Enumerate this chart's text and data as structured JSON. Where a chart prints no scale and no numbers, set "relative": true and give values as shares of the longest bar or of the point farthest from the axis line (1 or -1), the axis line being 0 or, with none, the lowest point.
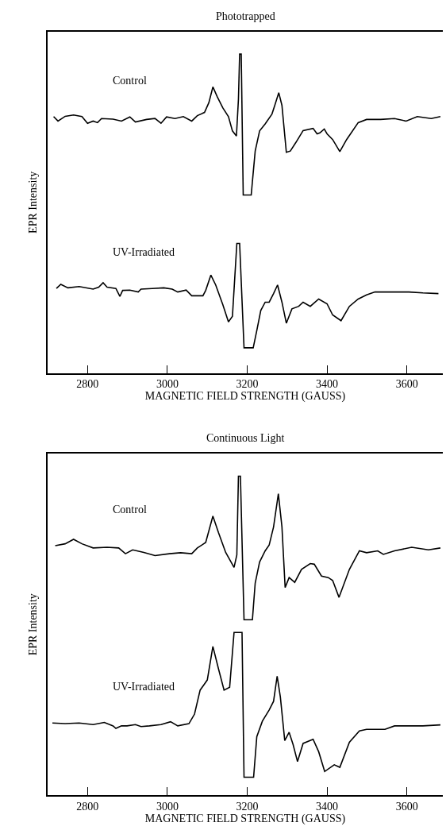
{
  "chart_data": [
    {
      "type": "line",
      "title": "Phototrapped",
      "xlabel": "MAGNETIC FIELD STRENGTH (GAUSS)",
      "ylabel": "EPR Intensity",
      "relative": true,
      "xlim": [
        2700,
        3690
      ],
      "xticks": [
        2800,
        3000,
        3200,
        3400,
        3600
      ],
      "series": [
        {
          "name": "Control",
          "color": "#000000",
          "x": [
            2715,
            2726,
            2744,
            2765,
            2786,
            2800,
            2814,
            2825,
            2835,
            2864,
            2885,
            2906,
            2920,
            2948,
            2969,
            2984,
            2998,
            3019,
            3040,
            3061,
            3075,
            3093,
            3104,
            3114,
            3125,
            3139,
            3153,
            3163,
            3173,
            3178,
            3181,
            3185,
            3190,
            3210,
            3213,
            3220,
            3231,
            3245,
            3262,
            3269,
            3279,
            3287,
            3298,
            3308,
            3322,
            3340,
            3365,
            3375,
            3382,
            3393,
            3400,
            3414,
            3432,
            3449,
            3478,
            3499,
            3534,
            3569,
            3598,
            3626,
            3661,
            3684
          ],
          "values": [
            0.804,
            0.79,
            0.805,
            0.809,
            0.804,
            0.783,
            0.79,
            0.785,
            0.798,
            0.796,
            0.79,
            0.803,
            0.787,
            0.795,
            0.798,
            0.783,
            0.803,
            0.798,
            0.804,
            0.79,
            0.807,
            0.817,
            0.848,
            0.897,
            0.866,
            0.831,
            0.804,
            0.759,
            0.743,
            0.858,
            1,
            1,
            0.558,
            0.558,
            0.6,
            0.696,
            0.759,
            0.781,
            0.812,
            0.839,
            0.879,
            0.839,
            0.692,
            0.696,
            0.723,
            0.76,
            0.767,
            0.75,
            0.753,
            0.765,
            0.75,
            0.732,
            0.694,
            0.732,
            0.785,
            0.795,
            0.795,
            0.798,
            0.79,
            0.804,
            0.798,
            0.804
          ]
        },
        {
          "name": "UV-Irradiated",
          "color": "#000000",
          "x": [
            2722,
            2733,
            2751,
            2779,
            2814,
            2828,
            2839,
            2849,
            2871,
            2881,
            2888,
            2906,
            2927,
            2934,
            2962,
            2991,
            3012,
            3026,
            3047,
            3061,
            3089,
            3096,
            3109,
            3121,
            3139,
            3153,
            3163,
            3174,
            3181,
            3192,
            3215,
            3224,
            3234,
            3245,
            3255,
            3266,
            3276,
            3287,
            3298,
            3312,
            3329,
            3340,
            3358,
            3379,
            3400,
            3414,
            3435,
            3456,
            3478,
            3499,
            3520,
            3569,
            3605,
            3640,
            3679
          ],
          "values": [
            0.265,
            0.278,
            0.267,
            0.271,
            0.263,
            0.269,
            0.283,
            0.269,
            0.265,
            0.24,
            0.259,
            0.26,
            0.254,
            0.263,
            0.265,
            0.267,
            0.263,
            0.254,
            0.26,
            0.242,
            0.242,
            0.259,
            0.307,
            0.276,
            0.214,
            0.16,
            0.178,
            0.406,
            0.406,
            0.079,
            0.079,
            0.133,
            0.196,
            0.222,
            0.222,
            0.249,
            0.276,
            0.222,
            0.156,
            0.201,
            0.209,
            0.222,
            0.209,
            0.232,
            0.217,
            0.182,
            0.164,
            0.209,
            0.232,
            0.245,
            0.254,
            0.254,
            0.254,
            0.251,
            0.249
          ]
        }
      ]
    },
    {
      "type": "line",
      "title": "Continuous Light",
      "xlabel": "MAGNETIC FIELD STRENGTH (GAUSS)",
      "ylabel": "EPR Intensity",
      "relative": true,
      "xlim": [
        2700,
        3690
      ],
      "xticks": [
        2800,
        3000,
        3200,
        3400,
        3600
      ],
      "series": [
        {
          "name": "Control",
          "color": "#000000",
          "x": [
            2719,
            2744,
            2765,
            2786,
            2814,
            2849,
            2878,
            2895,
            2913,
            2941,
            2969,
            3005,
            3033,
            3061,
            3075,
            3096,
            3114,
            3128,
            3146,
            3167,
            3174,
            3178,
            3183,
            3192,
            3213,
            3220,
            3231,
            3245,
            3255,
            3266,
            3278,
            3287,
            3295,
            3305,
            3319,
            3336,
            3358,
            3368,
            3386,
            3403,
            3414,
            3430,
            3456,
            3481,
            3499,
            3527,
            3541,
            3569,
            3612,
            3654,
            3684
          ],
          "values": [
            0.782,
            0.788,
            0.802,
            0.788,
            0.775,
            0.777,
            0.775,
            0.757,
            0.769,
            0.761,
            0.751,
            0.757,
            0.76,
            0.757,
            0.775,
            0.792,
            0.875,
            0.823,
            0.761,
            0.714,
            0.753,
            1,
            1,
            0.55,
            0.55,
            0.665,
            0.731,
            0.766,
            0.784,
            0.841,
            0.945,
            0.841,
            0.651,
            0.682,
            0.667,
            0.708,
            0.726,
            0.724,
            0.687,
            0.682,
            0.673,
            0.62,
            0.708,
            0.766,
            0.76,
            0.766,
            0.755,
            0.766,
            0.777,
            0.769,
            0.775
          ]
        },
        {
          "name": "UV-Irradiated",
          "color": "#000000",
          "x": [
            2712,
            2744,
            2779,
            2814,
            2842,
            2864,
            2871,
            2885,
            2899,
            2920,
            2934,
            2955,
            2984,
            3008,
            3026,
            3054,
            3068,
            3082,
            3100,
            3114,
            3128,
            3142,
            3156,
            3167,
            3187,
            3192,
            3216,
            3224,
            3238,
            3255,
            3266,
            3275,
            3283,
            3294,
            3305,
            3315,
            3326,
            3340,
            3365,
            3379,
            3394,
            3418,
            3432,
            3456,
            3481,
            3499,
            3545,
            3569,
            3605,
            3640,
            3684
          ],
          "values": [
            0.226,
            0.224,
            0.226,
            0.221,
            0.228,
            0.217,
            0.209,
            0.217,
            0.217,
            0.221,
            0.215,
            0.217,
            0.221,
            0.23,
            0.217,
            0.224,
            0.254,
            0.329,
            0.361,
            0.466,
            0.396,
            0.329,
            0.338,
            0.51,
            0.51,
            0.056,
            0.056,
            0.183,
            0.232,
            0.267,
            0.294,
            0.373,
            0.308,
            0.171,
            0.197,
            0.158,
            0.105,
            0.162,
            0.175,
            0.136,
            0.074,
            0.095,
            0.087,
            0.166,
            0.201,
            0.206,
            0.206,
            0.217,
            0.217,
            0.217,
            0.22
          ]
        }
      ]
    }
  ]
}
